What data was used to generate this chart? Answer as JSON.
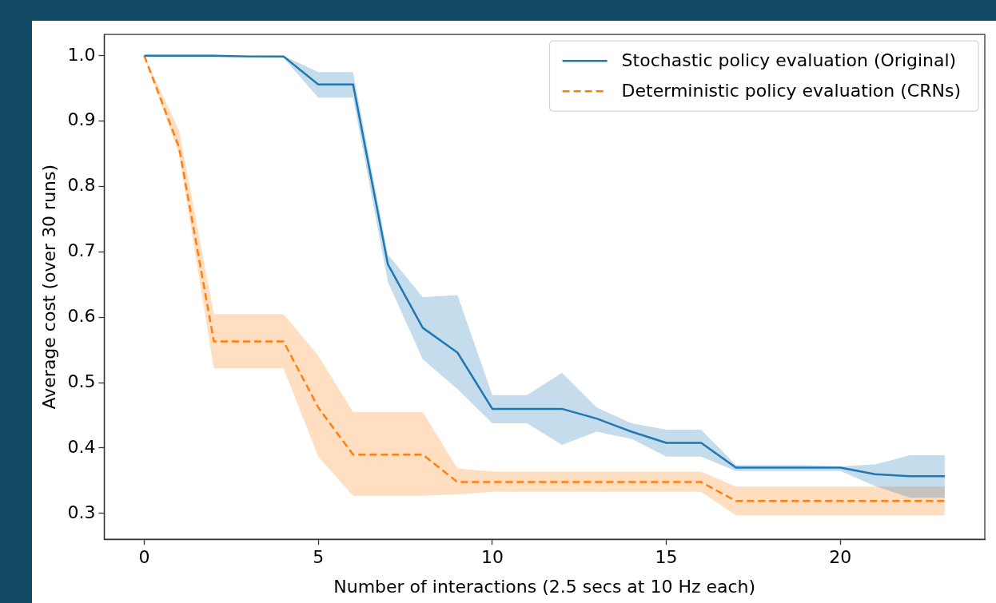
{
  "chart_data": {
    "type": "line",
    "xlabel": "Number of interactions (2.5 secs at 10 Hz each)",
    "ylabel": "Average cost (over 30 runs)",
    "x": [
      0,
      1,
      2,
      3,
      4,
      5,
      6,
      7,
      8,
      9,
      10,
      11,
      12,
      13,
      14,
      15,
      16,
      17,
      18,
      19,
      20,
      21,
      22,
      23
    ],
    "series": [
      {
        "name": "Stochastic policy evaluation (Original)",
        "color": "#1f77b4",
        "line_style": "solid",
        "values": [
          1.0,
          1.0,
          1.0,
          0.999,
          0.999,
          0.956,
          0.956,
          0.681,
          0.584,
          0.546,
          0.46,
          0.46,
          0.46,
          0.445,
          0.425,
          0.408,
          0.408,
          0.37,
          0.37,
          0.37,
          0.37,
          0.36,
          0.357,
          0.357
        ],
        "lower": [
          0.998,
          0.998,
          0.998,
          0.997,
          0.997,
          0.936,
          0.936,
          0.654,
          0.536,
          0.49,
          0.438,
          0.438,
          0.405,
          0.425,
          0.414,
          0.387,
          0.387,
          0.365,
          0.365,
          0.365,
          0.365,
          0.342,
          0.324,
          0.324
        ],
        "upper": [
          1.0,
          1.0,
          1.0,
          1.0,
          1.0,
          0.975,
          0.975,
          0.696,
          0.631,
          0.634,
          0.481,
          0.481,
          0.515,
          0.462,
          0.438,
          0.428,
          0.428,
          0.374,
          0.374,
          0.374,
          0.372,
          0.375,
          0.389,
          0.389
        ]
      },
      {
        "name": "Deterministic policy evaluation (CRNs)",
        "color": "#ff7f0e",
        "line_style": "dashed",
        "values": [
          1.0,
          0.86,
          0.563,
          0.563,
          0.563,
          0.462,
          0.39,
          0.39,
          0.39,
          0.348,
          0.348,
          0.348,
          0.348,
          0.348,
          0.348,
          0.348,
          0.348,
          0.319,
          0.319,
          0.319,
          0.319,
          0.319,
          0.319,
          0.319
        ],
        "lower": [
          1.0,
          0.849,
          0.522,
          0.522,
          0.522,
          0.387,
          0.327,
          0.327,
          0.327,
          0.329,
          0.333,
          0.333,
          0.333,
          0.333,
          0.333,
          0.333,
          0.333,
          0.297,
          0.297,
          0.297,
          0.297,
          0.297,
          0.297,
          0.297
        ],
        "upper": [
          1.0,
          0.886,
          0.605,
          0.605,
          0.605,
          0.541,
          0.455,
          0.455,
          0.455,
          0.369,
          0.364,
          0.364,
          0.364,
          0.364,
          0.364,
          0.364,
          0.364,
          0.341,
          0.341,
          0.341,
          0.341,
          0.341,
          0.341,
          0.341
        ]
      }
    ],
    "xlim": [
      -1.15,
      24.15
    ],
    "xticks": [
      0,
      5,
      10,
      15,
      20
    ],
    "ylim": [
      0.2605,
      1.0325
    ],
    "yticks": [
      0.3,
      0.4,
      0.5,
      0.6,
      0.7,
      0.8,
      0.9,
      {
        "value": 1,
        "label": "1.0"
      }
    ],
    "grid": false,
    "legend": "top right"
  }
}
